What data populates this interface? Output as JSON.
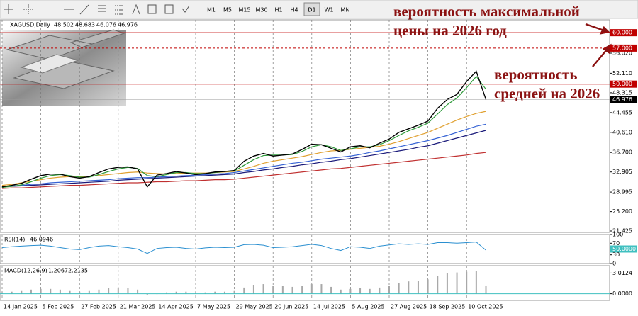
{
  "toolbar": {
    "timeframes": [
      "M1",
      "M5",
      "M15",
      "M30",
      "H1",
      "H4",
      "D1",
      "W1",
      "MN"
    ],
    "active": "D1"
  },
  "annotations": [
    {
      "lines": [
        "вероятность максимальной",
        "цены на 2026 год"
      ],
      "color": "#8b1212"
    },
    {
      "lines": [
        "вероятность",
        "средней на 2026"
      ],
      "color": "#8b1212"
    }
  ],
  "chart_data": [
    {
      "type": "line",
      "title": "XAGUSD,Daily",
      "header_values": [
        48.502,
        48.683,
        46.076,
        46.976
      ],
      "categories": [
        "14 Jan 2025",
        null,
        null,
        null,
        "5 Feb 2025",
        null,
        null,
        null,
        "27 Feb 2025",
        null,
        null,
        null,
        "21 Mar 2025",
        null,
        null,
        null,
        "14 Apr 2025",
        null,
        null,
        null,
        "7 May 2025",
        null,
        null,
        null,
        "29 May 2025",
        null,
        null,
        null,
        "20 Jun 2025",
        null,
        null,
        null,
        "14 Jul 2025",
        null,
        null,
        null,
        "5 Aug 2025",
        null,
        null,
        null,
        "27 Aug 2025",
        null,
        null,
        null,
        "18 Sep 2025",
        null,
        null,
        null,
        "10 Oct 2025",
        null,
        null
      ],
      "series": [
        {
          "color": "#000000",
          "values": [
            30.0,
            30.3,
            30.7,
            31.5,
            32.2,
            32.5,
            32.5,
            32.0,
            31.7,
            32.0,
            32.8,
            33.5,
            33.8,
            33.9,
            33.5,
            30.0,
            32.3,
            32.6,
            33.0,
            32.7,
            32.4,
            32.6,
            32.9,
            33.0,
            33.2,
            35.0,
            36.0,
            36.5,
            36.0,
            36.2,
            36.4,
            37.3,
            38.3,
            38.2,
            37.5,
            36.8,
            37.8,
            38.0,
            37.6,
            38.5,
            39.3,
            40.6,
            41.3,
            42.0,
            42.8,
            45.3,
            47.0,
            48.0,
            50.5,
            52.5,
            47.0
          ]
        },
        {
          "color": "#2e9a3a",
          "values": [
            29.9,
            30.1,
            30.4,
            31.0,
            31.7,
            32.2,
            32.4,
            32.2,
            31.9,
            31.9,
            32.4,
            33.0,
            33.5,
            33.8,
            33.6,
            32.2,
            32.0,
            32.4,
            32.8,
            32.8,
            32.6,
            32.6,
            32.8,
            33.0,
            33.1,
            34.2,
            35.3,
            36.1,
            36.2,
            36.2,
            36.3,
            36.9,
            37.8,
            38.2,
            37.8,
            37.1,
            37.4,
            37.8,
            37.8,
            38.2,
            39.0,
            40.0,
            40.9,
            41.6,
            42.4,
            44.2,
            46.0,
            47.3,
            49.3,
            51.5,
            49.0
          ]
        },
        {
          "color": "#e0a030",
          "values": [
            30.3,
            30.5,
            30.8,
            31.1,
            31.4,
            31.7,
            31.9,
            32.0,
            32.0,
            32.1,
            32.2,
            32.4,
            32.6,
            32.8,
            32.9,
            32.7,
            32.6,
            32.5,
            32.6,
            32.7,
            32.7,
            32.7,
            32.8,
            32.9,
            33.0,
            33.5,
            34.0,
            34.6,
            35.0,
            35.3,
            35.6,
            35.9,
            36.3,
            36.7,
            37.0,
            37.1,
            37.3,
            37.5,
            37.7,
            37.9,
            38.3,
            38.8,
            39.4,
            40.0,
            40.6,
            41.4,
            42.2,
            43.0,
            43.7,
            44.3,
            44.7
          ]
        },
        {
          "color": "#3562d4",
          "values": [
            30.1,
            30.2,
            30.3,
            30.5,
            30.6,
            30.8,
            30.9,
            31.0,
            31.1,
            31.2,
            31.3,
            31.4,
            31.6,
            31.7,
            31.8,
            31.8,
            31.9,
            32.0,
            32.1,
            32.2,
            32.3,
            32.4,
            32.5,
            32.6,
            32.8,
            33.1,
            33.4,
            33.7,
            34.0,
            34.3,
            34.6,
            34.8,
            35.1,
            35.4,
            35.6,
            35.8,
            36.0,
            36.3,
            36.7,
            37.0,
            37.4,
            37.8,
            38.2,
            38.6,
            39.0,
            39.5,
            40.0,
            40.6,
            41.2,
            41.8,
            42.2
          ]
        },
        {
          "color": "#1a1a7a",
          "values": [
            30.0,
            30.1,
            30.2,
            30.3,
            30.4,
            30.5,
            30.6,
            30.7,
            30.8,
            30.9,
            31.0,
            31.1,
            31.3,
            31.4,
            31.5,
            31.6,
            31.7,
            31.8,
            31.9,
            32.0,
            32.1,
            32.2,
            32.3,
            32.4,
            32.5,
            32.8,
            33.0,
            33.3,
            33.5,
            33.8,
            34.0,
            34.3,
            34.5,
            34.8,
            35.0,
            35.3,
            35.5,
            35.8,
            36.1,
            36.4,
            36.7,
            37.0,
            37.3,
            37.7,
            38.0,
            38.5,
            39.0,
            39.5,
            40.0,
            40.5,
            41.0
          ]
        },
        {
          "color": "#c03030",
          "values": [
            29.7,
            29.8,
            29.8,
            29.9,
            30.0,
            30.1,
            30.2,
            30.3,
            30.3,
            30.4,
            30.5,
            30.6,
            30.7,
            30.8,
            30.8,
            30.9,
            31.0,
            31.0,
            31.1,
            31.2,
            31.2,
            31.3,
            31.4,
            31.4,
            31.5,
            31.7,
            31.9,
            32.1,
            32.3,
            32.5,
            32.7,
            32.9,
            33.1,
            33.3,
            33.5,
            33.6,
            33.8,
            34.0,
            34.2,
            34.4,
            34.6,
            34.8,
            35.0,
            35.2,
            35.4,
            35.6,
            35.8,
            36.0,
            36.2,
            36.5,
            36.7
          ]
        }
      ],
      "ylim": [
        21.15,
        62.5
      ],
      "yticks": [
        {
          "value": 56.02,
          "label": "56.020"
        },
        {
          "value": 52.11,
          "label": "52.110"
        },
        {
          "value": 48.315,
          "label": "48.315"
        },
        {
          "value": 44.455,
          "label": "44.455"
        },
        {
          "value": 40.61,
          "label": "40.610"
        },
        {
          "value": 36.7,
          "label": "36.700"
        },
        {
          "value": 32.905,
          "label": "32.905"
        },
        {
          "value": 28.995,
          "label": "28.995"
        },
        {
          "value": 25.2,
          "label": "25.200"
        },
        {
          "value": 21.425,
          "label": "21.425"
        }
      ],
      "levels": [
        {
          "value": 60,
          "label": "60.000",
          "color": "#c00000",
          "dashed": false
        },
        {
          "value": 57,
          "label": "57.000",
          "color": "#c00000",
          "dashed": true
        },
        {
          "value": 50,
          "label": "50.000",
          "color": "#c00000",
          "dashed": false
        }
      ],
      "last_price": 46.976
    },
    {
      "type": "line",
      "title": "RSI(14)",
      "last": 46.0946,
      "color": "#2a8fd0",
      "values": [
        55,
        58,
        60,
        62,
        63,
        60,
        55,
        50,
        48,
        55,
        60,
        62,
        58,
        55,
        50,
        35,
        52,
        55,
        56,
        52,
        50,
        54,
        56,
        55,
        56,
        65,
        66,
        63,
        55,
        56,
        58,
        62,
        66,
        62,
        52,
        45,
        58,
        56,
        52,
        60,
        64,
        68,
        66,
        68,
        66,
        72,
        72,
        70,
        72,
        74,
        46
      ],
      "ylim": [
        0,
        100
      ],
      "yticks": [
        100,
        70,
        {
          "value": 50,
          "label": "50.0000"
        },
        30,
        0
      ],
      "level_color": "#40c0c0"
    },
    {
      "type": "bar",
      "title": "MACD(12,26,9)",
      "main": 1.2067,
      "signal": 2.2135,
      "color": "#a8a8a8",
      "values": [
        0.2,
        0.3,
        0.4,
        0.6,
        0.7,
        0.7,
        0.6,
        0.4,
        0.3,
        0.4,
        0.6,
        0.8,
        0.9,
        0.8,
        0.6,
        -0.2,
        0.0,
        0.2,
        0.3,
        0.3,
        0.2,
        0.2,
        0.3,
        0.3,
        0.4,
        0.9,
        1.3,
        1.4,
        1.2,
        1.1,
        1.0,
        1.1,
        1.4,
        1.4,
        1.0,
        0.6,
        0.7,
        0.8,
        0.7,
        0.9,
        1.2,
        1.6,
        1.8,
        1.9,
        2.1,
        2.6,
        3.0,
        3.1,
        3.2,
        3.3,
        1.2
      ],
      "ylim": [
        -0.97,
        4.09
      ],
      "yticks": [
        3.0124,
        {
          "value": 0,
          "label": "0.0000"
        }
      ]
    }
  ]
}
